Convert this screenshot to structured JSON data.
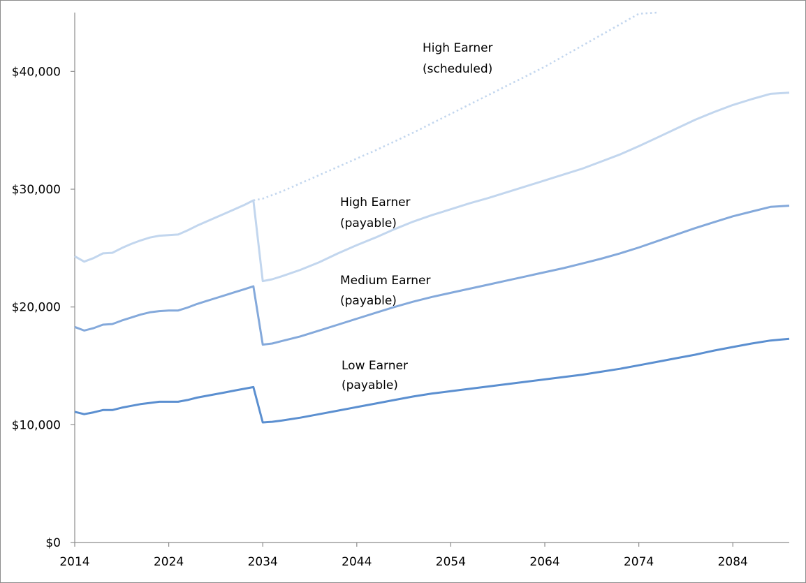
{
  "chart_data": {
    "type": "line",
    "title": "",
    "xlabel": "",
    "ylabel": "",
    "x_ticks": [
      "2014",
      "2024",
      "2034",
      "2044",
      "2054",
      "2064",
      "2074",
      "2084"
    ],
    "y_ticks": [
      "$0",
      "$10,000",
      "$20,000",
      "$30,000",
      "$40,000"
    ],
    "xlim": [
      2014,
      2090
    ],
    "ylim": [
      0,
      45000
    ],
    "grid": false,
    "legend": "none",
    "series": [
      {
        "label": "Low Earner (payable)",
        "color": "#5b8fd0",
        "style": "solid",
        "x": [
          2014,
          2015,
          2016,
          2017,
          2018,
          2019,
          2020,
          2021,
          2022,
          2023,
          2024,
          2025,
          2026,
          2027,
          2028,
          2029,
          2030,
          2031,
          2032,
          2033,
          2034,
          2035,
          2036,
          2038,
          2040,
          2042,
          2044,
          2046,
          2048,
          2050,
          2052,
          2054,
          2056,
          2058,
          2060,
          2062,
          2064,
          2066,
          2068,
          2070,
          2072,
          2074,
          2076,
          2078,
          2080,
          2082,
          2084,
          2086,
          2088,
          2090
        ],
        "y": [
          11100,
          10900,
          11050,
          11250,
          11250,
          11450,
          11600,
          11750,
          11850,
          11950,
          11950,
          11950,
          12100,
          12300,
          12450,
          12600,
          12750,
          12900,
          13050,
          13200,
          10200,
          10250,
          10350,
          10600,
          10900,
          11200,
          11500,
          11800,
          12100,
          12400,
          12650,
          12850,
          13050,
          13250,
          13450,
          13650,
          13850,
          14050,
          14250,
          14500,
          14750,
          15050,
          15350,
          15650,
          15950,
          16300,
          16600,
          16900,
          17150,
          17300
        ]
      },
      {
        "label": "Medium Earner (payable)",
        "color": "#84a9db",
        "style": "solid",
        "x": [
          2014,
          2015,
          2016,
          2017,
          2018,
          2019,
          2020,
          2021,
          2022,
          2023,
          2024,
          2025,
          2026,
          2027,
          2028,
          2029,
          2030,
          2031,
          2032,
          2033,
          2034,
          2035,
          2036,
          2038,
          2040,
          2042,
          2044,
          2046,
          2048,
          2050,
          2052,
          2054,
          2056,
          2058,
          2060,
          2062,
          2064,
          2066,
          2068,
          2070,
          2072,
          2074,
          2076,
          2078,
          2080,
          2082,
          2084,
          2086,
          2088,
          2090
        ],
        "y": [
          18300,
          18000,
          18200,
          18500,
          18550,
          18850,
          19100,
          19350,
          19550,
          19650,
          19700,
          19700,
          19950,
          20250,
          20500,
          20750,
          21000,
          21250,
          21500,
          21750,
          16800,
          16900,
          17100,
          17500,
          18000,
          18500,
          19000,
          19500,
          20000,
          20450,
          20850,
          21200,
          21550,
          21900,
          22250,
          22600,
          22950,
          23300,
          23700,
          24100,
          24550,
          25050,
          25600,
          26150,
          26700,
          27200,
          27700,
          28100,
          28500,
          28600
        ]
      },
      {
        "label": "High Earner (payable)",
        "color": "#c2d6ee",
        "style": "solid",
        "x": [
          2014,
          2015,
          2016,
          2017,
          2018,
          2019,
          2020,
          2021,
          2022,
          2023,
          2024,
          2025,
          2026,
          2027,
          2028,
          2029,
          2030,
          2031,
          2032,
          2033,
          2034,
          2035,
          2036,
          2038,
          2040,
          2042,
          2044,
          2046,
          2048,
          2050,
          2052,
          2054,
          2056,
          2058,
          2060,
          2062,
          2064,
          2066,
          2068,
          2070,
          2072,
          2074,
          2076,
          2078,
          2080,
          2082,
          2084,
          2086,
          2088,
          2090
        ],
        "y": [
          24300,
          23850,
          24150,
          24550,
          24600,
          25000,
          25350,
          25650,
          25900,
          26050,
          26100,
          26150,
          26500,
          26900,
          27250,
          27600,
          27950,
          28300,
          28650,
          29050,
          22200,
          22350,
          22600,
          23150,
          23800,
          24550,
          25250,
          25900,
          26600,
          27250,
          27800,
          28300,
          28800,
          29250,
          29750,
          30250,
          30750,
          31250,
          31750,
          32350,
          32950,
          33650,
          34400,
          35150,
          35900,
          36550,
          37150,
          37650,
          38100,
          38200
        ]
      },
      {
        "label": "High Earner (scheduled)",
        "color": "#c2d6ee",
        "style": "dotted",
        "x": [
          2033,
          2034,
          2036,
          2038,
          2040,
          2042,
          2044,
          2046,
          2048,
          2050,
          2052,
          2054,
          2056,
          2058,
          2060,
          2062,
          2064,
          2066,
          2068,
          2070,
          2072,
          2074,
          2076
        ],
        "y": [
          29050,
          29200,
          29800,
          30500,
          31200,
          31900,
          32600,
          33300,
          34050,
          34800,
          35600,
          36400,
          37200,
          38000,
          38800,
          39600,
          40400,
          41300,
          42200,
          43100,
          44000,
          44900,
          45000
        ]
      }
    ],
    "annotations": [
      {
        "line1": "High Earner",
        "line2": "(scheduled)"
      },
      {
        "line1": "High Earner",
        "line2": "(payable)"
      },
      {
        "line1": "Medium Earner",
        "line2": "(payable)"
      },
      {
        "line1": "Low Earner",
        "line2": "(payable)"
      }
    ]
  }
}
